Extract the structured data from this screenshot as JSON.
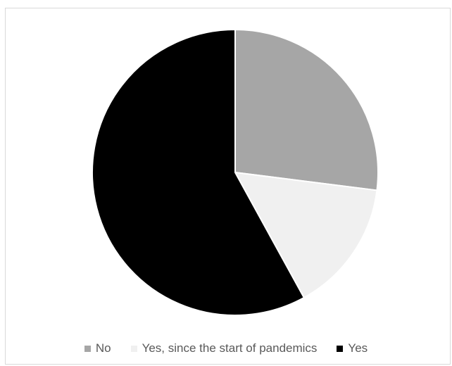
{
  "chart_data": {
    "type": "pie",
    "labels": [
      "No",
      "Yes, since the start of pandemics",
      "Yes"
    ],
    "values": [
      27,
      15,
      58
    ],
    "colors": [
      "#a6a6a6",
      "#f0f0f0",
      "#000000"
    ],
    "legend_position": "bottom",
    "start_angle": "12 o'clock",
    "direction": "clockwise"
  }
}
